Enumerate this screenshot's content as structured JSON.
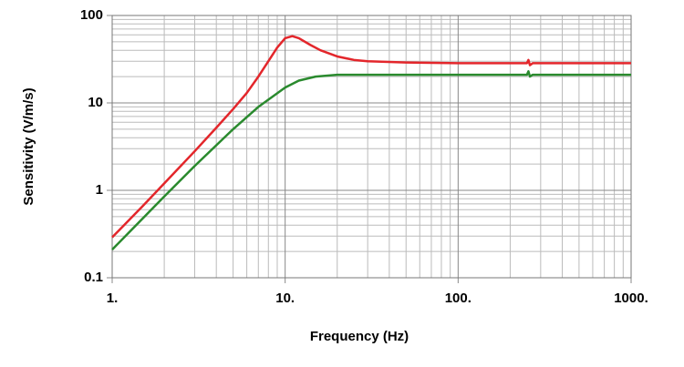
{
  "chart_data": {
    "type": "line",
    "x_label": "Frequency (Hz)",
    "y_label": "Sensitivity (V/m/s)",
    "x_log": true,
    "y_log": true,
    "grid": true,
    "minor_grid": true,
    "xlim": [
      1,
      1000
    ],
    "ylim": [
      0.1,
      100
    ],
    "xticks": [
      {
        "value": 1,
        "label": "1."
      },
      {
        "value": 10,
        "label": "10."
      },
      {
        "value": 100,
        "label": "100."
      },
      {
        "value": 1000,
        "label": "1000."
      }
    ],
    "yticks": [
      0.1,
      1,
      10,
      100
    ],
    "series": [
      {
        "color": "#e3262b",
        "x": [
          1,
          1.5,
          2,
          3,
          4,
          5,
          6,
          7,
          8,
          9,
          10,
          11,
          12,
          14,
          16,
          20,
          25,
          30,
          50,
          100,
          250,
          255,
          260,
          270,
          1000
        ],
        "values": [
          0.29,
          0.66,
          1.2,
          2.8,
          5.2,
          8.5,
          13,
          20,
          30,
          43,
          55,
          58,
          55,
          46,
          40,
          34,
          31,
          30,
          29,
          28.5,
          28.5,
          31,
          27,
          28.5,
          28.5
        ]
      },
      {
        "color": "#2a8a2e",
        "x": [
          1,
          2,
          3,
          5,
          7,
          10,
          12,
          15,
          20,
          30,
          100,
          250,
          255,
          260,
          270,
          1000
        ],
        "values": [
          0.21,
          0.85,
          1.9,
          5,
          9,
          15,
          18,
          20,
          21,
          21,
          21,
          21,
          23,
          20,
          21,
          21
        ]
      }
    ]
  }
}
